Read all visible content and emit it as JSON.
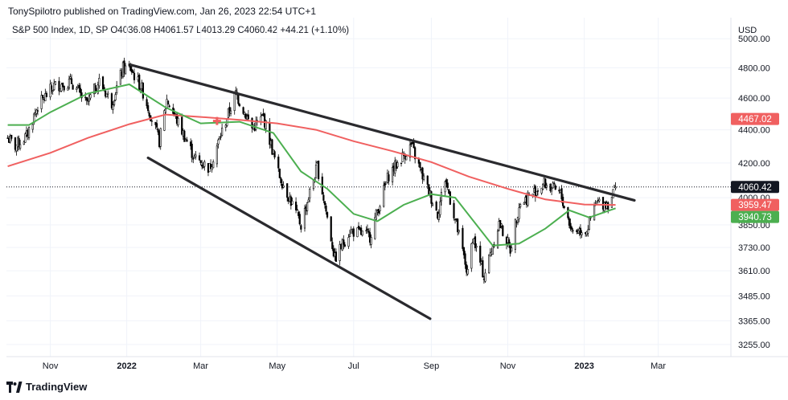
{
  "attribution": "TonySpilotro published on TradingView.com, Jan 26, 2023 22:54 UTC+1",
  "legend": {
    "symbol": "S&P 500 Index, 1D, SP",
    "open_label": "O",
    "open": "4036.08",
    "high_label": "H",
    "high": "4061.57",
    "low_label": "L",
    "low": "4013.29",
    "close_label": "C",
    "close": "4060.42",
    "change": "+44.21 (+1.10%)"
  },
  "brand": {
    "name": "TradingView",
    "logo_icon": "tradingview-logo-icon"
  },
  "colors": {
    "price": "#000000",
    "ma_fast": "#4caf50",
    "ma_slow": "#f06060",
    "trendline": "#2a2a2e",
    "last_price_bg": "#131722"
  },
  "chart_data": {
    "type": "candlestick",
    "y_axis_label": "USD",
    "y_ticks": [
      "3255.00",
      "3365.00",
      "3485.00",
      "3610.00",
      "3730.00",
      "3850.00",
      "4000.00",
      "4200.00",
      "4400.00",
      "4600.00",
      "4800.00",
      "5000.00"
    ],
    "x_ticks": [
      {
        "label": "Nov",
        "date": "2021-11-01",
        "bold": false
      },
      {
        "label": "2022",
        "date": "2022-01-01",
        "bold": true
      },
      {
        "label": "Mar",
        "date": "2022-03-01",
        "bold": false
      },
      {
        "label": "May",
        "date": "2022-05-01",
        "bold": false
      },
      {
        "label": "Jul",
        "date": "2022-07-01",
        "bold": false
      },
      {
        "label": "Sep",
        "date": "2022-09-01",
        "bold": false
      },
      {
        "label": "Nov",
        "date": "2022-11-01",
        "bold": false
      },
      {
        "label": "2023",
        "date": "2023-01-01",
        "bold": true
      },
      {
        "label": "Mar",
        "date": "2023-03-01",
        "bold": false
      }
    ],
    "x_range": [
      "2021-09-27",
      "2023-04-28"
    ],
    "y_range": [
      3200,
      5150
    ],
    "y_scale": "log",
    "price_path": [
      [
        "2021-09-28",
        4350
      ],
      [
        "2021-10-04",
        4300
      ],
      [
        "2021-10-13",
        4360
      ],
      [
        "2021-10-22",
        4550
      ],
      [
        "2021-11-04",
        4680
      ],
      [
        "2021-11-18",
        4705
      ],
      [
        "2021-11-30",
        4560
      ],
      [
        "2021-12-10",
        4710
      ],
      [
        "2021-12-20",
        4570
      ],
      [
        "2021-12-29",
        4795
      ],
      [
        "2022-01-04",
        4795
      ],
      [
        "2022-01-13",
        4660
      ],
      [
        "2022-01-27",
        4330
      ],
      [
        "2022-02-02",
        4590
      ],
      [
        "2022-02-24",
        4230
      ],
      [
        "2022-03-08",
        4170
      ],
      [
        "2022-03-29",
        4630
      ],
      [
        "2022-04-11",
        4410
      ],
      [
        "2022-04-20",
        4480
      ],
      [
        "2022-05-02",
        4140
      ],
      [
        "2022-05-20",
        3850
      ],
      [
        "2022-06-02",
        4180
      ],
      [
        "2022-06-16",
        3670
      ],
      [
        "2022-06-28",
        3820
      ],
      [
        "2022-07-14",
        3790
      ],
      [
        "2022-07-29",
        4130
      ],
      [
        "2022-08-16",
        4305
      ],
      [
        "2022-08-24",
        4140
      ],
      [
        "2022-09-06",
        3910
      ],
      [
        "2022-09-12",
        4110
      ],
      [
        "2022-09-30",
        3590
      ],
      [
        "2022-10-04",
        3790
      ],
      [
        "2022-10-13",
        3580
      ],
      [
        "2022-10-25",
        3860
      ],
      [
        "2022-11-03",
        3720
      ],
      [
        "2022-11-10",
        3960
      ],
      [
        "2022-11-30",
        4080
      ],
      [
        "2022-12-13",
        4020
      ],
      [
        "2022-12-22",
        3820
      ],
      [
        "2023-01-03",
        3825
      ],
      [
        "2023-01-11",
        3970
      ],
      [
        "2023-01-20",
        3970
      ],
      [
        "2023-01-26",
        4060
      ]
    ],
    "series": [
      {
        "values": [
          [
            "2021-09-28",
            4430
          ],
          [
            "2021-10-15",
            4430
          ],
          [
            "2021-11-01",
            4510
          ],
          [
            "2021-12-01",
            4630
          ],
          [
            "2022-01-03",
            4690
          ],
          [
            "2022-02-01",
            4540
          ],
          [
            "2022-03-01",
            4440
          ],
          [
            "2022-04-01",
            4450
          ],
          [
            "2022-04-28",
            4380
          ],
          [
            "2022-05-20",
            4150
          ],
          [
            "2022-06-10",
            4050
          ],
          [
            "2022-07-01",
            3910
          ],
          [
            "2022-07-20",
            3870
          ],
          [
            "2022-08-10",
            3960
          ],
          [
            "2022-09-01",
            4020
          ],
          [
            "2022-09-20",
            4000
          ],
          [
            "2022-10-20",
            3740
          ],
          [
            "2022-11-10",
            3750
          ],
          [
            "2022-12-01",
            3830
          ],
          [
            "2022-12-20",
            3930
          ],
          [
            "2023-01-05",
            3890
          ],
          [
            "2023-01-26",
            3940.73
          ]
        ]
      },
      {
        "values": [
          [
            "2021-09-28",
            4180
          ],
          [
            "2021-11-01",
            4260
          ],
          [
            "2021-12-01",
            4350
          ],
          [
            "2022-01-03",
            4435
          ],
          [
            "2022-02-01",
            4495
          ],
          [
            "2022-03-01",
            4480
          ],
          [
            "2022-04-01",
            4462
          ],
          [
            "2022-05-01",
            4440
          ],
          [
            "2022-06-01",
            4400
          ],
          [
            "2022-07-01",
            4330
          ],
          [
            "2022-08-01",
            4270
          ],
          [
            "2022-09-01",
            4205
          ],
          [
            "2022-10-01",
            4120
          ],
          [
            "2022-11-01",
            4050
          ],
          [
            "2022-12-01",
            3990
          ],
          [
            "2023-01-01",
            3962
          ],
          [
            "2023-01-26",
            3959.47
          ]
        ]
      }
    ],
    "trendlines": [
      {
        "from": [
          "2022-01-04",
          4820
        ],
        "to": [
          "2023-02-10",
          3985
        ]
      },
      {
        "from": [
          "2022-01-18",
          4230
        ],
        "to": [
          "2022-08-31",
          3375
        ]
      }
    ],
    "cross_marker": [
      "2022-03-14",
      4455
    ],
    "badges": [
      {
        "label": "4467.02",
        "value": 4467.02,
        "color": "#f06060"
      },
      {
        "label": "4060.42",
        "value": 4060.42,
        "color": "#131722"
      },
      {
        "label": "3959.47",
        "value": 3959.47,
        "color": "#f06060"
      },
      {
        "label": "3940.73",
        "value": 3940.73,
        "color": "#4caf50"
      }
    ],
    "last_price": 4060.42
  }
}
